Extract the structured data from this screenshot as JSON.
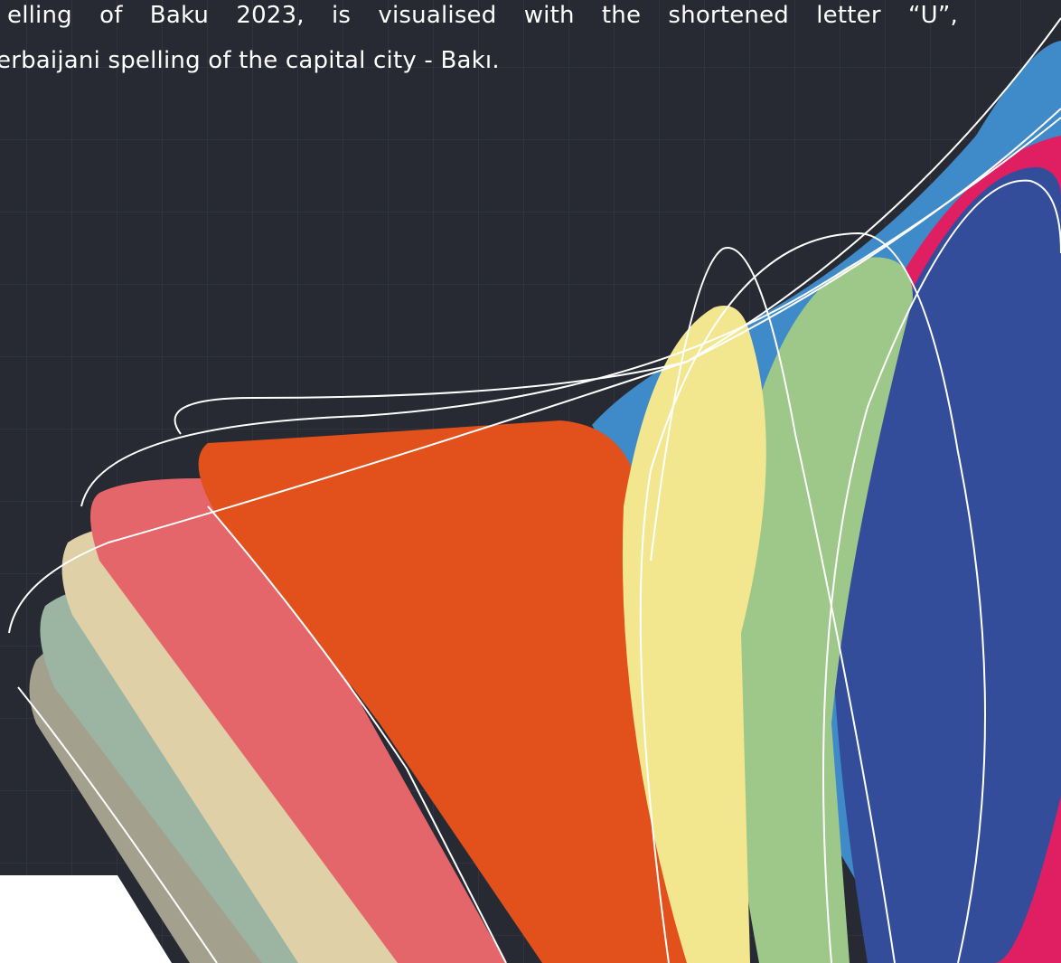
{
  "paragraph": {
    "lines": [
      "elling of Baku 2023, is visualised with the shortened letter “U”,",
      "erbaijani spelling of the capital city - Bakı."
    ]
  }
}
